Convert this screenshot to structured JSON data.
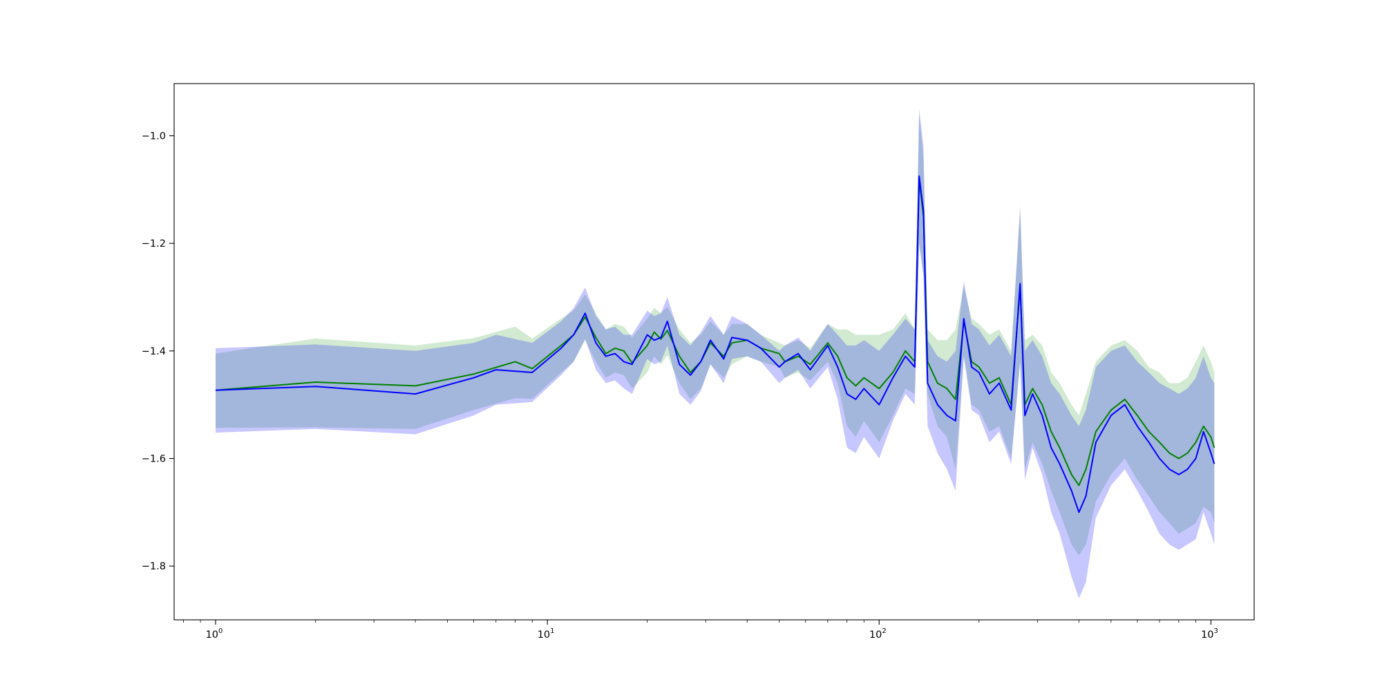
{
  "chart_data": {
    "type": "line",
    "title": "",
    "xlabel": "",
    "ylabel": "",
    "xscale": "log",
    "xlim": [
      0.75,
      1350
    ],
    "ylim": [
      -1.9,
      -0.903
    ],
    "grid": false,
    "legend": "none",
    "xticks": [
      {
        "base": "10",
        "exp": "0",
        "value": 1
      },
      {
        "base": "10",
        "exp": "1",
        "value": 10
      },
      {
        "base": "10",
        "exp": "2",
        "value": 100
      },
      {
        "base": "10",
        "exp": "3",
        "value": 1000
      }
    ],
    "yticks": [
      {
        "label": "−1.0",
        "value": -1.0
      },
      {
        "label": "−1.2",
        "value": -1.2
      },
      {
        "label": "−1.4",
        "value": -1.4
      },
      {
        "label": "−1.6",
        "value": -1.6
      },
      {
        "label": "−1.8",
        "value": -1.8
      }
    ],
    "series": [
      {
        "color": "#008000",
        "band_color": "#2ca02c",
        "points": [
          [
            1,
            -1.473,
            -1.405,
            -1.543
          ],
          [
            2,
            -1.458,
            -1.377,
            -1.542
          ],
          [
            4,
            -1.465,
            -1.39,
            -1.545
          ],
          [
            6,
            -1.443,
            -1.376,
            -1.51
          ],
          [
            8,
            -1.42,
            -1.355,
            -1.488
          ],
          [
            9,
            -1.433,
            -1.377,
            -1.489
          ],
          [
            11,
            -1.39,
            -1.34,
            -1.44
          ],
          [
            12,
            -1.37,
            -1.325,
            -1.42
          ],
          [
            13,
            -1.337,
            -1.295,
            -1.38
          ],
          [
            14,
            -1.375,
            -1.33,
            -1.42
          ],
          [
            15,
            -1.405,
            -1.36,
            -1.45
          ],
          [
            16,
            -1.395,
            -1.35,
            -1.44
          ],
          [
            17,
            -1.4,
            -1.355,
            -1.445
          ],
          [
            18,
            -1.422,
            -1.375,
            -1.47
          ],
          [
            20,
            -1.39,
            -1.34,
            -1.44
          ],
          [
            21,
            -1.365,
            -1.32,
            -1.41
          ],
          [
            22,
            -1.378,
            -1.33,
            -1.425
          ],
          [
            23,
            -1.362,
            -1.318,
            -1.408
          ],
          [
            25,
            -1.41,
            -1.36,
            -1.46
          ],
          [
            27,
            -1.44,
            -1.385,
            -1.49
          ],
          [
            29,
            -1.42,
            -1.37,
            -1.47
          ],
          [
            31,
            -1.385,
            -1.345,
            -1.425
          ],
          [
            34,
            -1.41,
            -1.37,
            -1.45
          ],
          [
            36,
            -1.385,
            -1.35,
            -1.425
          ],
          [
            40,
            -1.38,
            -1.35,
            -1.41
          ],
          [
            44,
            -1.395,
            -1.37,
            -1.42
          ],
          [
            50,
            -1.405,
            -1.385,
            -1.43
          ],
          [
            52,
            -1.42,
            -1.39,
            -1.45
          ],
          [
            57,
            -1.41,
            -1.38,
            -1.44
          ],
          [
            62,
            -1.425,
            -1.395,
            -1.455
          ],
          [
            70,
            -1.385,
            -1.35,
            -1.42
          ],
          [
            75,
            -1.41,
            -1.36,
            -1.46
          ],
          [
            80,
            -1.45,
            -1.36,
            -1.54
          ],
          [
            85,
            -1.465,
            -1.37,
            -1.56
          ],
          [
            90,
            -1.45,
            -1.37,
            -1.53
          ],
          [
            100,
            -1.47,
            -1.37,
            -1.57
          ],
          [
            110,
            -1.44,
            -1.36,
            -1.52
          ],
          [
            120,
            -1.4,
            -1.33,
            -1.47
          ],
          [
            128,
            -1.42,
            -1.36,
            -1.48
          ],
          [
            132,
            -1.08,
            -0.96,
            -1.2
          ],
          [
            136,
            -1.15,
            -1.04,
            -1.26
          ],
          [
            140,
            -1.42,
            -1.36,
            -1.48
          ],
          [
            150,
            -1.46,
            -1.38,
            -1.54
          ],
          [
            160,
            -1.47,
            -1.38,
            -1.56
          ],
          [
            170,
            -1.49,
            -1.36,
            -1.62
          ],
          [
            180,
            -1.345,
            -1.28,
            -1.41
          ],
          [
            190,
            -1.42,
            -1.34,
            -1.5
          ],
          [
            200,
            -1.43,
            -1.35,
            -1.51
          ],
          [
            215,
            -1.46,
            -1.37,
            -1.55
          ],
          [
            230,
            -1.45,
            -1.36,
            -1.54
          ],
          [
            250,
            -1.5,
            -1.4,
            -1.6
          ],
          [
            266,
            -1.28,
            -1.14,
            -1.42
          ],
          [
            275,
            -1.5,
            -1.38,
            -1.62
          ],
          [
            290,
            -1.47,
            -1.37,
            -1.57
          ],
          [
            310,
            -1.5,
            -1.39,
            -1.61
          ],
          [
            330,
            -1.55,
            -1.44,
            -1.66
          ],
          [
            350,
            -1.58,
            -1.46,
            -1.7
          ],
          [
            380,
            -1.63,
            -1.5,
            -1.76
          ],
          [
            400,
            -1.65,
            -1.52,
            -1.78
          ],
          [
            420,
            -1.62,
            -1.48,
            -1.76
          ],
          [
            450,
            -1.55,
            -1.42,
            -1.68
          ],
          [
            500,
            -1.51,
            -1.39,
            -1.63
          ],
          [
            550,
            -1.49,
            -1.38,
            -1.6
          ],
          [
            600,
            -1.52,
            -1.4,
            -1.64
          ],
          [
            650,
            -1.55,
            -1.43,
            -1.67
          ],
          [
            700,
            -1.57,
            -1.44,
            -1.7
          ],
          [
            750,
            -1.59,
            -1.46,
            -1.72
          ],
          [
            800,
            -1.6,
            -1.46,
            -1.74
          ],
          [
            850,
            -1.59,
            -1.45,
            -1.73
          ],
          [
            900,
            -1.57,
            -1.42,
            -1.72
          ],
          [
            950,
            -1.54,
            -1.39,
            -1.69
          ],
          [
            1000,
            -1.56,
            -1.42,
            -1.7
          ],
          [
            1024,
            -1.58,
            -1.44,
            -1.72
          ]
        ]
      },
      {
        "color": "#0000ff",
        "band_color": "#0000ff",
        "points": [
          [
            1,
            -1.473,
            -1.395,
            -1.552
          ],
          [
            2,
            -1.466,
            -1.388,
            -1.545
          ],
          [
            4,
            -1.48,
            -1.4,
            -1.555
          ],
          [
            6,
            -1.45,
            -1.385,
            -1.52
          ],
          [
            7,
            -1.435,
            -1.37,
            -1.5
          ],
          [
            9,
            -1.44,
            -1.385,
            -1.495
          ],
          [
            11,
            -1.395,
            -1.345,
            -1.445
          ],
          [
            12,
            -1.37,
            -1.32,
            -1.42
          ],
          [
            13,
            -1.33,
            -1.282,
            -1.378
          ],
          [
            14,
            -1.385,
            -1.335,
            -1.435
          ],
          [
            15,
            -1.41,
            -1.36,
            -1.46
          ],
          [
            16,
            -1.405,
            -1.355,
            -1.455
          ],
          [
            17,
            -1.42,
            -1.37,
            -1.47
          ],
          [
            18,
            -1.425,
            -1.37,
            -1.48
          ],
          [
            20,
            -1.37,
            -1.325,
            -1.415
          ],
          [
            21,
            -1.38,
            -1.335,
            -1.425
          ],
          [
            22,
            -1.375,
            -1.33,
            -1.42
          ],
          [
            23,
            -1.345,
            -1.3,
            -1.39
          ],
          [
            25,
            -1.425,
            -1.37,
            -1.48
          ],
          [
            27,
            -1.445,
            -1.39,
            -1.5
          ],
          [
            29,
            -1.42,
            -1.365,
            -1.475
          ],
          [
            31,
            -1.38,
            -1.335,
            -1.425
          ],
          [
            34,
            -1.415,
            -1.37,
            -1.46
          ],
          [
            36,
            -1.375,
            -1.335,
            -1.415
          ],
          [
            40,
            -1.38,
            -1.35,
            -1.41
          ],
          [
            44,
            -1.395,
            -1.37,
            -1.42
          ],
          [
            50,
            -1.43,
            -1.4,
            -1.46
          ],
          [
            52,
            -1.42,
            -1.39,
            -1.45
          ],
          [
            57,
            -1.405,
            -1.375,
            -1.435
          ],
          [
            62,
            -1.435,
            -1.4,
            -1.47
          ],
          [
            70,
            -1.39,
            -1.35,
            -1.43
          ],
          [
            75,
            -1.43,
            -1.37,
            -1.49
          ],
          [
            80,
            -1.48,
            -1.39,
            -1.58
          ],
          [
            85,
            -1.49,
            -1.39,
            -1.59
          ],
          [
            90,
            -1.47,
            -1.38,
            -1.56
          ],
          [
            100,
            -1.5,
            -1.4,
            -1.6
          ],
          [
            110,
            -1.45,
            -1.37,
            -1.53
          ],
          [
            120,
            -1.41,
            -1.34,
            -1.48
          ],
          [
            128,
            -1.43,
            -1.36,
            -1.5
          ],
          [
            132,
            -1.075,
            -0.95,
            -1.2
          ],
          [
            136,
            -1.14,
            -1.02,
            -1.26
          ],
          [
            140,
            -1.46,
            -1.38,
            -1.54
          ],
          [
            150,
            -1.5,
            -1.41,
            -1.59
          ],
          [
            160,
            -1.52,
            -1.42,
            -1.62
          ],
          [
            170,
            -1.53,
            -1.4,
            -1.66
          ],
          [
            180,
            -1.34,
            -1.27,
            -1.41
          ],
          [
            190,
            -1.43,
            -1.35,
            -1.51
          ],
          [
            200,
            -1.44,
            -1.36,
            -1.52
          ],
          [
            215,
            -1.48,
            -1.39,
            -1.57
          ],
          [
            230,
            -1.46,
            -1.37,
            -1.55
          ],
          [
            250,
            -1.51,
            -1.41,
            -1.61
          ],
          [
            266,
            -1.275,
            -1.13,
            -1.42
          ],
          [
            275,
            -1.52,
            -1.4,
            -1.64
          ],
          [
            290,
            -1.48,
            -1.38,
            -1.58
          ],
          [
            310,
            -1.52,
            -1.41,
            -1.63
          ],
          [
            330,
            -1.58,
            -1.46,
            -1.7
          ],
          [
            350,
            -1.61,
            -1.48,
            -1.74
          ],
          [
            380,
            -1.66,
            -1.52,
            -1.82
          ],
          [
            400,
            -1.7,
            -1.54,
            -1.86
          ],
          [
            420,
            -1.67,
            -1.51,
            -1.83
          ],
          [
            450,
            -1.57,
            -1.43,
            -1.71
          ],
          [
            500,
            -1.52,
            -1.4,
            -1.65
          ],
          [
            550,
            -1.5,
            -1.39,
            -1.62
          ],
          [
            600,
            -1.54,
            -1.42,
            -1.66
          ],
          [
            650,
            -1.57,
            -1.44,
            -1.7
          ],
          [
            700,
            -1.6,
            -1.46,
            -1.74
          ],
          [
            750,
            -1.62,
            -1.47,
            -1.76
          ],
          [
            800,
            -1.63,
            -1.48,
            -1.77
          ],
          [
            850,
            -1.62,
            -1.47,
            -1.76
          ],
          [
            900,
            -1.6,
            -1.45,
            -1.75
          ],
          [
            950,
            -1.55,
            -1.41,
            -1.7
          ],
          [
            1000,
            -1.59,
            -1.45,
            -1.74
          ],
          [
            1024,
            -1.61,
            -1.46,
            -1.76
          ]
        ]
      }
    ]
  }
}
